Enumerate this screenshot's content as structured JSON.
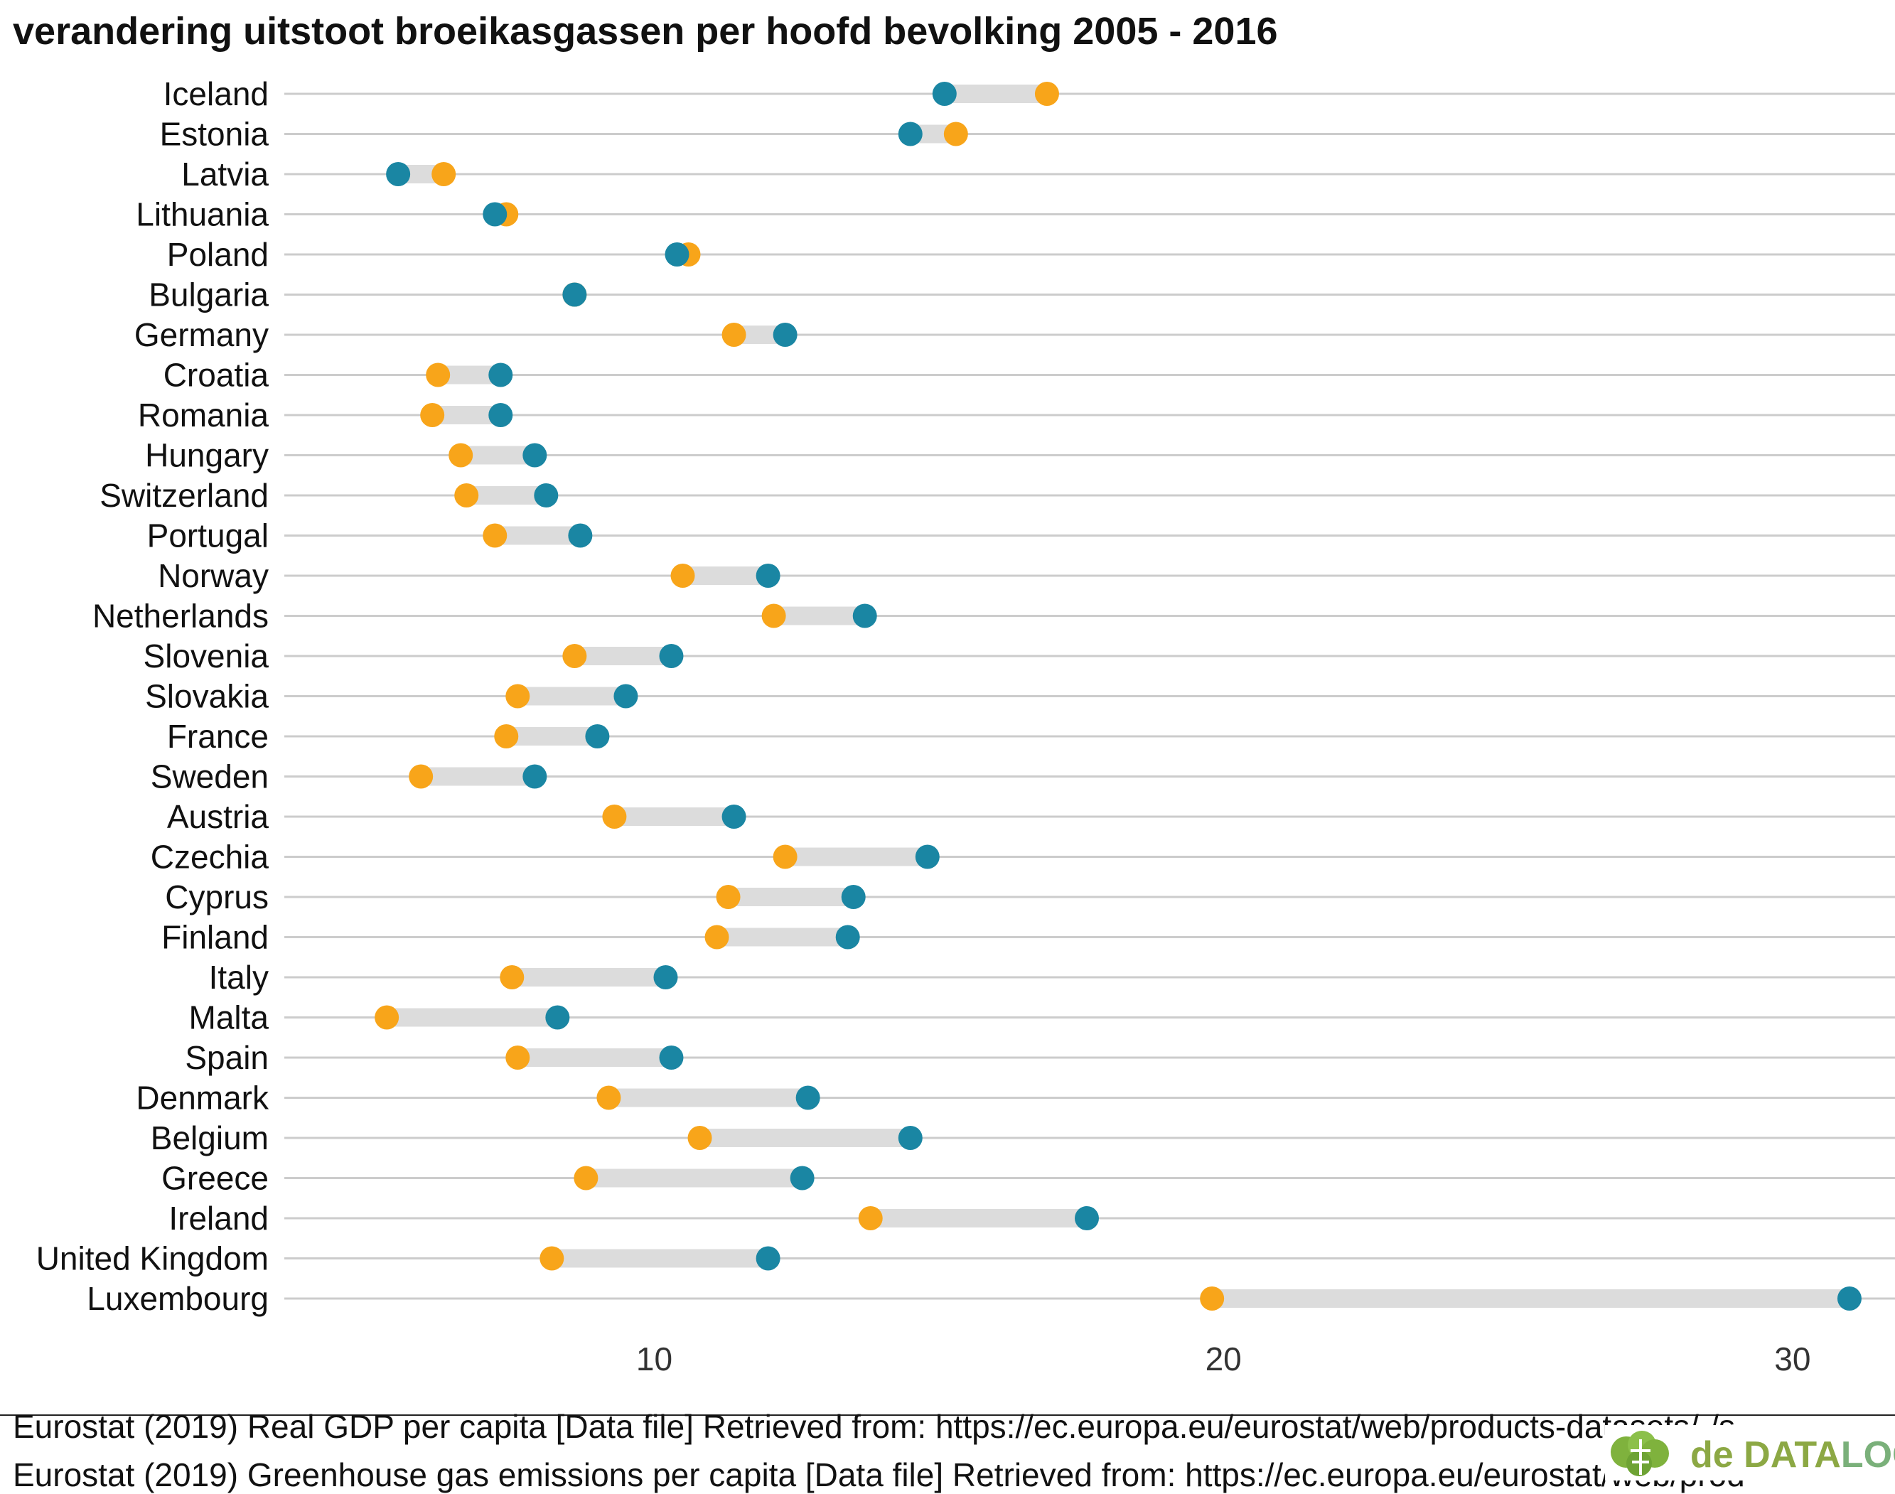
{
  "chart_data": {
    "type": "dumbbell",
    "title": "verandering uitstoot broeikasgassen per hoofd bevolking 2005 - 2016",
    "xlabel": "",
    "ylabel": "",
    "xlim": [
      3.5,
      31.8
    ],
    "xticks": [
      10,
      20,
      30
    ],
    "grid": "horizontal",
    "colors": {
      "2005": "#1a86a3",
      "2016": "#f8a51a",
      "segment": "#dcdcdc",
      "grid": "#cccccc"
    },
    "categories": [
      "Iceland",
      "Estonia",
      "Latvia",
      "Lithuania",
      "Poland",
      "Bulgaria",
      "Germany",
      "Croatia",
      "Romania",
      "Hungary",
      "Switzerland",
      "Portugal",
      "Norway",
      "Netherlands",
      "Slovenia",
      "Slovakia",
      "France",
      "Sweden",
      "Austria",
      "Czechia",
      "Cyprus",
      "Finland",
      "Italy",
      "Malta",
      "Spain",
      "Denmark",
      "Belgium",
      "Greece",
      "Ireland",
      "United Kingdom",
      "Luxembourg"
    ],
    "series": [
      {
        "key": "2005",
        "values": [
          15.1,
          14.5,
          5.5,
          7.2,
          10.4,
          8.6,
          12.3,
          7.3,
          7.3,
          7.9,
          8.1,
          8.7,
          12.0,
          13.7,
          10.3,
          9.5,
          9.0,
          7.9,
          11.4,
          14.8,
          13.5,
          13.4,
          10.2,
          8.3,
          10.3,
          12.7,
          14.5,
          12.6,
          17.6,
          12.0,
          31.0
        ]
      },
      {
        "key": "2016",
        "values": [
          16.9,
          15.3,
          6.3,
          7.4,
          10.6,
          8.6,
          11.4,
          6.2,
          6.1,
          6.6,
          6.7,
          7.2,
          10.5,
          12.1,
          8.6,
          7.6,
          7.4,
          5.9,
          9.3,
          12.3,
          11.3,
          11.1,
          7.5,
          5.3,
          7.6,
          9.2,
          10.8,
          8.8,
          13.8,
          8.2,
          19.8
        ]
      }
    ]
  },
  "captions": [
    "Eurostat (2019) Real GDP per capita [Data file] Retrieved from: https://ec.europa.eu/eurostat/web/products-datasets/-/s",
    "Eurostat (2019) Greenhouse gas emissions per capita [Data file] Retrieved from: https://ec.europa.eu/eurostat/web/prod"
  ],
  "logo": {
    "prefix": "de ",
    "data": "DATA",
    "loog": "LOOG"
  }
}
